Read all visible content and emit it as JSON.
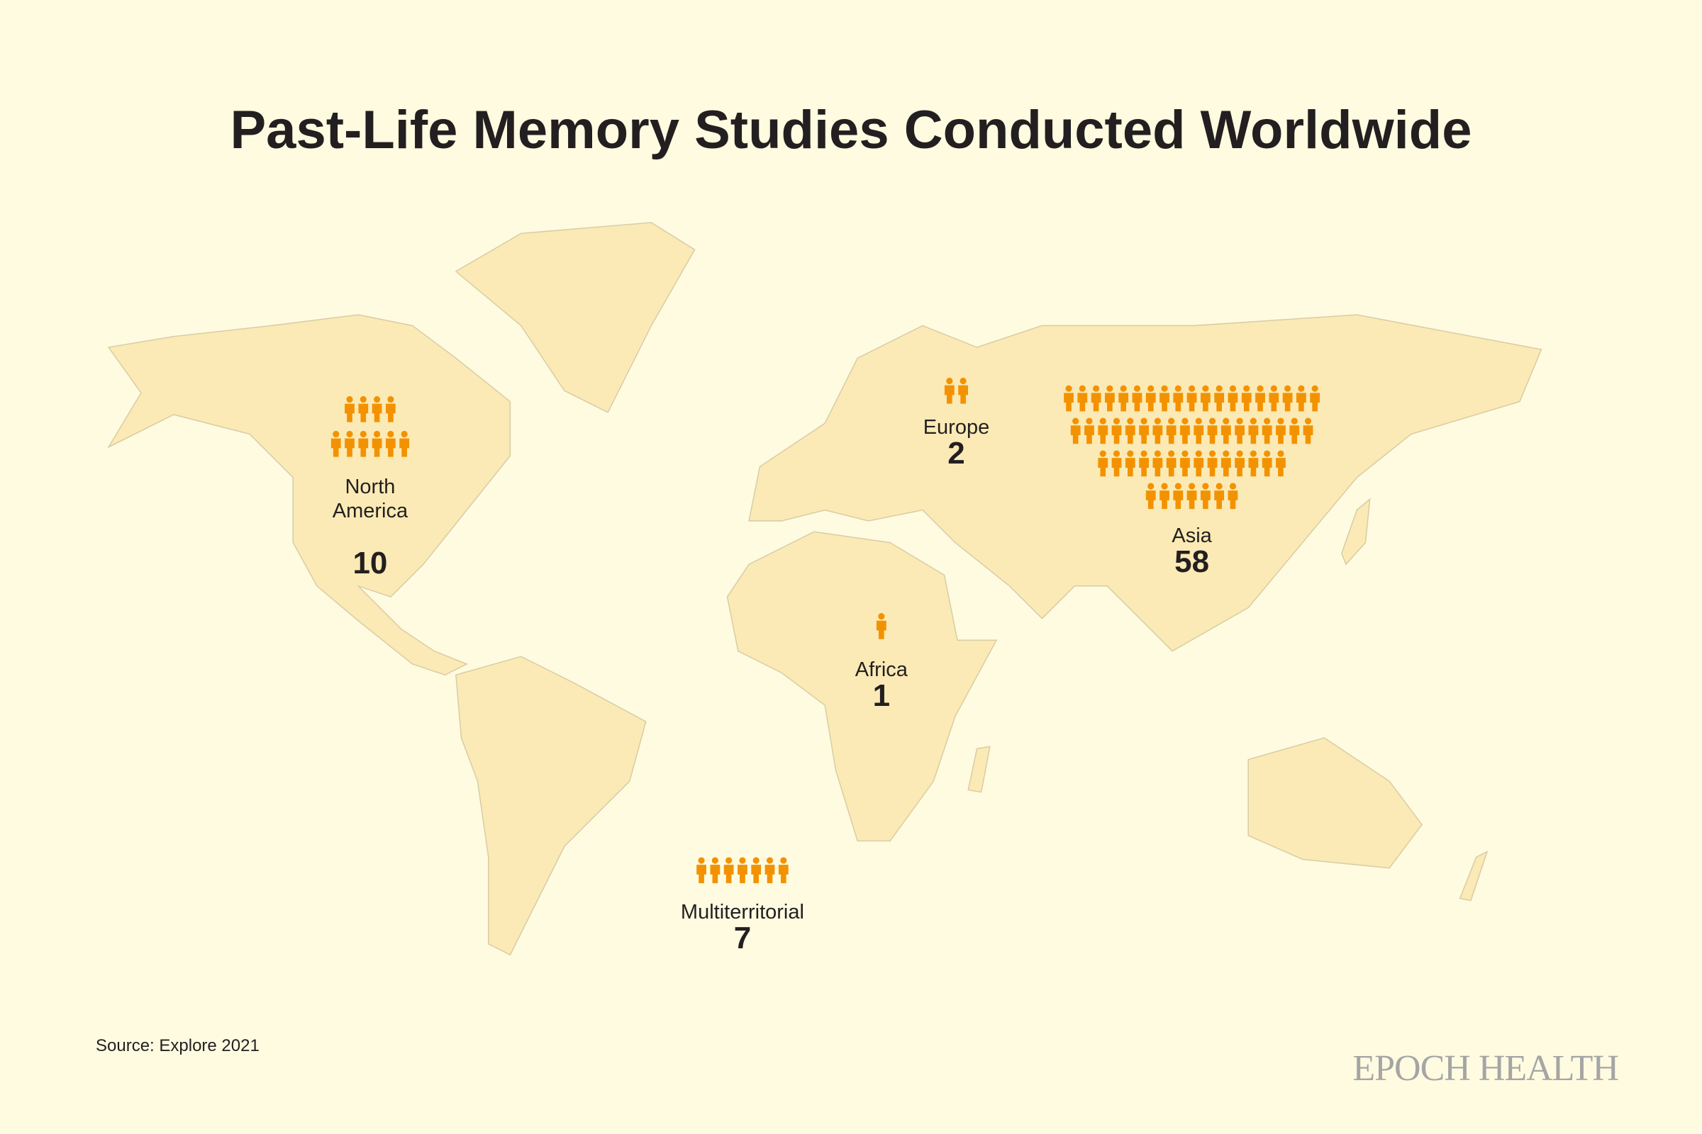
{
  "title": "Past-Life Memory Studies Conducted Worldwide",
  "regions": [
    {
      "name": "North America",
      "value": 10
    },
    {
      "name": "Europe",
      "value": 2
    },
    {
      "name": "Asia",
      "value": 58
    },
    {
      "name": "Africa",
      "value": 1
    },
    {
      "name": "Multiterritorial",
      "value": 7
    }
  ],
  "source": "Source: Explore 2021",
  "brand": "EPOCH HEALTH"
}
